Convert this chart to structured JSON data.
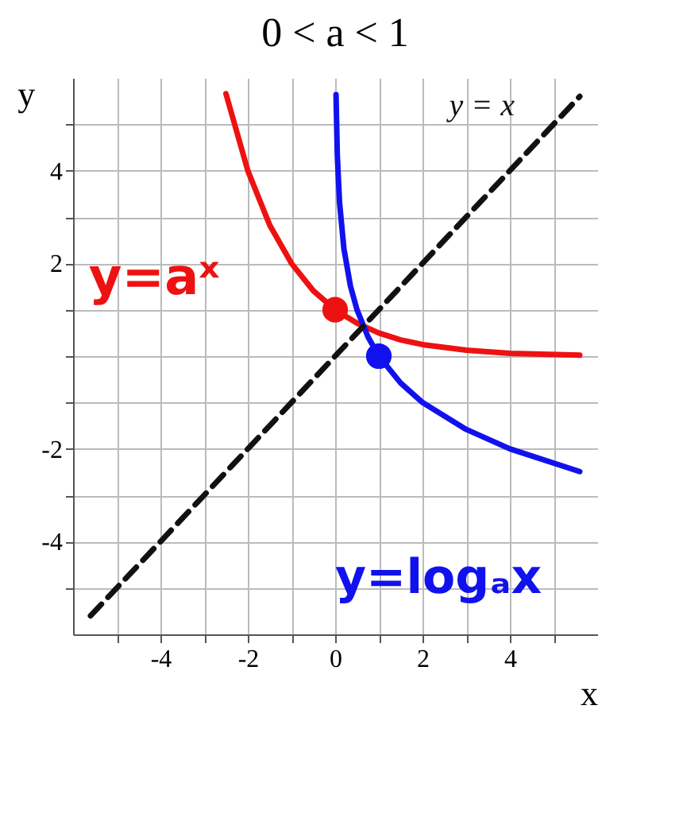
{
  "chart_data": {
    "type": "line",
    "title": "0 < a < 1",
    "xlabel": "x",
    "ylabel": "y",
    "xlim": [
      -6,
      6
    ],
    "ylim": [
      -6,
      6
    ],
    "xticks": [
      {
        "value": -5,
        "label": null
      },
      -4,
      {
        "value": -3,
        "label": null
      },
      -2,
      {
        "value": -1,
        "label": null
      },
      0,
      {
        "value": 1,
        "label": null
      },
      2,
      {
        "value": 3,
        "label": null
      },
      4,
      {
        "value": 5,
        "label": null
      }
    ],
    "yticks": [
      {
        "value": -5,
        "label": null
      },
      -4,
      {
        "value": -3,
        "label": null
      },
      -2,
      {
        "value": -1,
        "label": null
      },
      {
        "value": 0,
        "label": null
      },
      {
        "value": 1,
        "label": null
      },
      2,
      {
        "value": 3,
        "label": null
      },
      4,
      {
        "value": 5,
        "label": null
      }
    ],
    "grid": true,
    "series": [
      {
        "color": "#ee1111",
        "x": [
          -2.5,
          -2,
          -1.5,
          -1,
          -0.5,
          0,
          0.5,
          1,
          1.5,
          2,
          3,
          4,
          5.6
        ],
        "values": [
          5.66,
          4,
          2.83,
          2,
          1.41,
          1,
          0.71,
          0.5,
          0.35,
          0.25,
          0.13,
          0.06,
          0.02
        ]
      },
      {
        "color": "#1111ee",
        "x": [
          0.02,
          0.05,
          0.1,
          0.2,
          0.35,
          0.5,
          0.75,
          1,
          1.5,
          2,
          3,
          4,
          5.6
        ],
        "values": [
          5.64,
          4.32,
          3.32,
          2.32,
          1.51,
          1,
          0.42,
          0,
          -0.58,
          -1,
          -1.58,
          -2,
          -2.49
        ]
      },
      {
        "color": "#111111",
        "line_style": "dashed",
        "x": [
          -5.6,
          5.6
        ],
        "values": [
          -5.6,
          5.6
        ]
      },
      {
        "type": "scatter",
        "color": "#ee1111",
        "x": [
          0
        ],
        "values": [
          1
        ]
      },
      {
        "type": "scatter",
        "color": "#1111ee",
        "x": [
          1
        ],
        "values": [
          0
        ]
      }
    ],
    "annotations": [
      "y = x",
      "y=aˣ",
      "y=logₐx"
    ]
  }
}
